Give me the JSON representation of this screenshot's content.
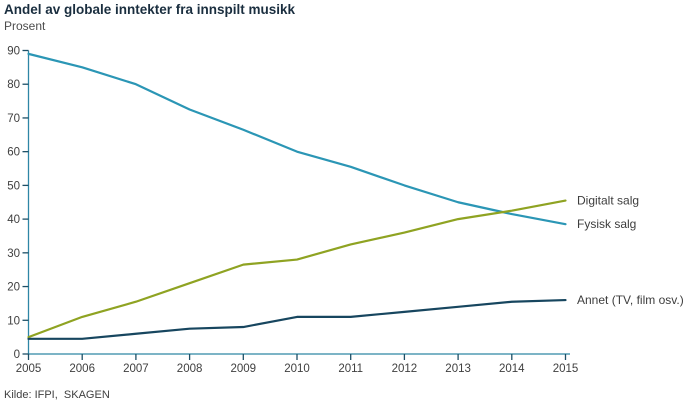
{
  "title": "Andel av globale inntekter fra innspilt musikk",
  "subtitle": "Prosent",
  "source": "Kilde: IFPI,  SKAGEN",
  "colors": {
    "axis_line": "#2e86a5",
    "tick_mark": "#1d4f66",
    "tick_label": "#404040",
    "series_label": "#3d3d3d",
    "fysisk": "#2b96b5",
    "digitalt": "#8fa322",
    "annet": "#17465f"
  },
  "chart_data": {
    "type": "line",
    "title": "Andel av globale inntekter fra innspilt musikk",
    "ylabel": "Prosent",
    "xlabel": "",
    "x": [
      2005,
      2006,
      2007,
      2008,
      2009,
      2010,
      2011,
      2012,
      2013,
      2014,
      2015
    ],
    "series": [
      {
        "name": "Fysisk salg",
        "color": "#2b96b5",
        "values": [
          89,
          85,
          80,
          72.5,
          66.5,
          60,
          55.5,
          50,
          45,
          41.5,
          38.5
        ]
      },
      {
        "name": "Digitalt salg",
        "color": "#8fa322",
        "values": [
          5,
          11,
          15.5,
          21,
          26.5,
          28,
          32.5,
          36,
          40,
          42.5,
          45.5
        ]
      },
      {
        "name": "Annet (TV, film osv.)",
        "color": "#17465f",
        "values": [
          4.5,
          4.5,
          6,
          7.5,
          8,
          11,
          11,
          12.5,
          14,
          15.5,
          16
        ]
      }
    ],
    "ylim": [
      0,
      90
    ],
    "ytick_step": 10,
    "grid": false,
    "legend_position": "right-end-labels"
  }
}
